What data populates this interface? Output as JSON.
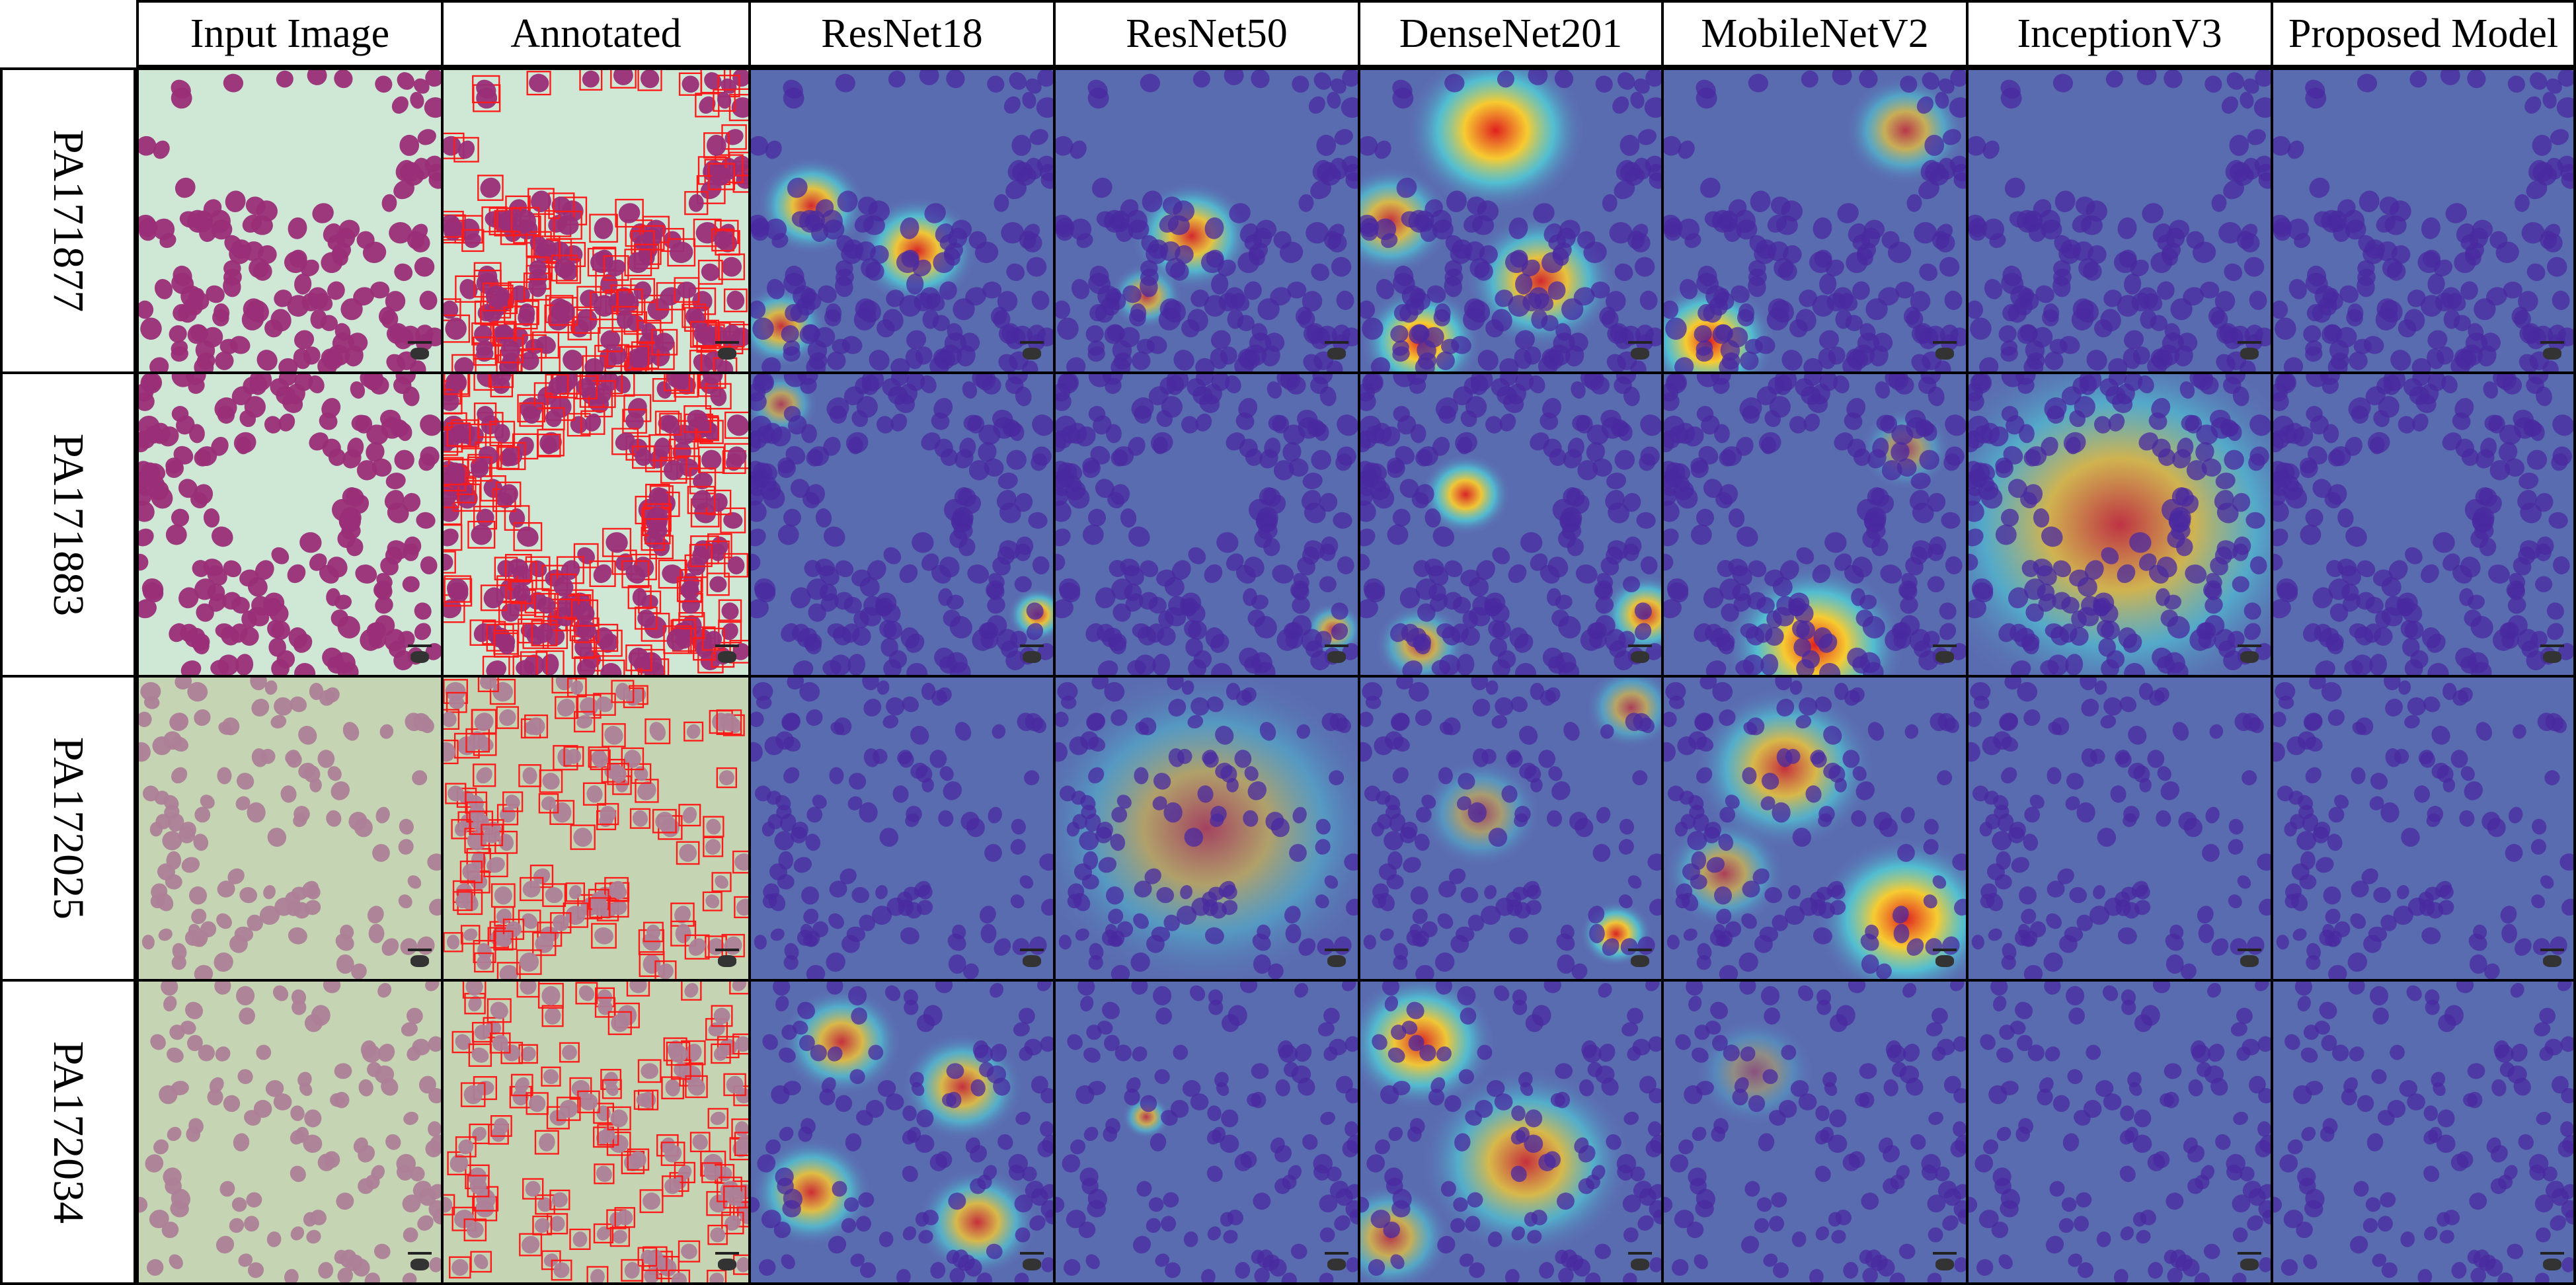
{
  "columns": [
    "Input Image",
    "Annotated",
    "ResNet18",
    "ResNet50",
    "DenseNet201",
    "MobileNetV2",
    "InceptionV3",
    "Proposed Model"
  ],
  "rows": [
    "PA171877",
    "PA171883",
    "PA172025",
    "PA172034"
  ],
  "colors": {
    "border": "#000000",
    "stain_bg_rows_1_2": "#cfe8d6",
    "stain_bg_rows_3_4": "#c5d5b4",
    "cell_dark": "#9a2e78",
    "cell_light": "#ad7f97",
    "annotation_box": "#ff1a1a",
    "heatmap_base": "#5a6cb0",
    "heatmap_cell": "#4a2aa0"
  }
}
